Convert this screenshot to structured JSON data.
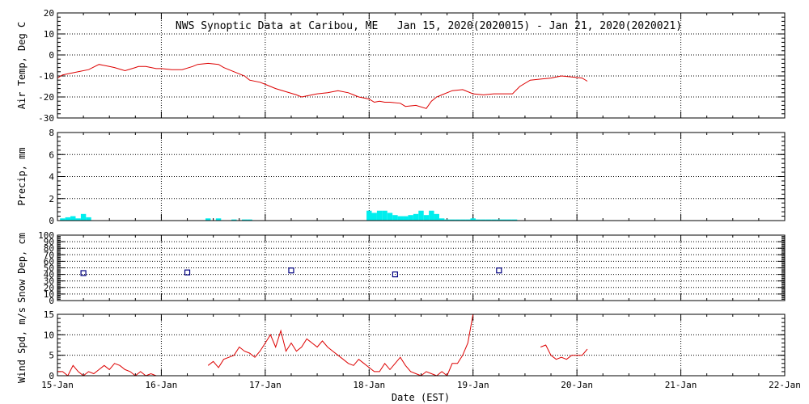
{
  "chart_data": {
    "type": "multi-panel",
    "title": "NWS Synoptic Data at Caribou, ME   Jan 15, 2020(2020015) - Jan 21, 2020(2020021)",
    "xlabel": "Date (EST)",
    "x_unit": "days since 15-Jan 00:00 EST",
    "xlim": [
      0,
      7
    ],
    "x_ticks": [
      0,
      1,
      2,
      3,
      4,
      5,
      6,
      7
    ],
    "x_tick_labels": [
      "15-Jan",
      "16-Jan",
      "17-Jan",
      "18-Jan",
      "19-Jan",
      "20-Jan",
      "21-Jan",
      "22-Jan"
    ],
    "colors": {
      "line": "#dd0000",
      "bar": "#00eeee",
      "marker": "#000080",
      "grid": "#000000"
    },
    "panels": [
      {
        "type": "line",
        "ylabel": "Air Temp, Deg C",
        "ylim": [
          -30,
          20
        ],
        "yticks": [
          -30,
          -20,
          -10,
          0,
          10,
          20
        ],
        "series": [
          {
            "name": "Air Temp",
            "x": [
              0.0,
              0.05,
              0.1,
              0.2,
              0.3,
              0.4,
              0.5,
              0.55,
              0.65,
              0.75,
              0.78,
              0.85,
              0.95,
              1.0,
              1.1,
              1.2,
              1.3,
              1.35,
              1.45,
              1.55,
              1.6,
              1.7,
              1.8,
              1.85,
              1.95,
              2.0,
              2.1,
              2.2,
              2.3,
              2.35,
              2.45,
              2.5,
              2.6,
              2.7,
              2.8,
              2.85,
              2.9,
              2.95,
              3.0,
              3.05,
              3.1,
              3.15,
              3.2,
              3.3,
              3.35,
              3.45,
              3.55,
              3.6,
              3.65,
              3.7,
              3.8,
              3.9,
              4.0,
              4.1,
              4.2,
              4.3,
              4.38,
              4.45,
              4.55,
              4.65,
              4.75,
              4.85,
              4.95,
              5.05,
              5.1
            ],
            "y": [
              -11,
              -9.5,
              -9,
              -8,
              -7,
              -4.5,
              -5.5,
              -6,
              -7.5,
              -6,
              -5.5,
              -5.5,
              -6.5,
              -6.5,
              -7,
              -7,
              -5.5,
              -4.5,
              -4,
              -4.5,
              -6,
              -8,
              -10,
              -12,
              -13,
              -14,
              -16,
              -17.5,
              -19,
              -20,
              -19,
              -18.5,
              -18,
              -17,
              -18,
              -19,
              -20,
              -20.5,
              -21,
              -22.5,
              -22,
              -22.5,
              -22.5,
              -23,
              -24.5,
              -24,
              -25.5,
              -22,
              -20,
              -19,
              -17,
              -16.5,
              -18.5,
              -19,
              -18.5,
              -18.5,
              -18.5,
              -15,
              -12,
              -11.5,
              -11,
              -10,
              -10.5,
              -11,
              -12.5
            ]
          }
        ]
      },
      {
        "type": "bar",
        "ylabel": "Precip, mm",
        "ylim": [
          0,
          8
        ],
        "yticks": [
          0,
          2,
          4,
          6,
          8
        ],
        "bar_width": 0.05,
        "series": [
          {
            "name": "Precip",
            "x": [
              0.05,
              0.1,
              0.15,
              0.2,
              0.25,
              0.3,
              1.45,
              1.55,
              1.7,
              1.8,
              1.85,
              3.0,
              3.05,
              3.1,
              3.15,
              3.2,
              3.25,
              3.3,
              3.35,
              3.4,
              3.45,
              3.5,
              3.55,
              3.6,
              3.65,
              3.7,
              3.75,
              3.8,
              3.85,
              3.9,
              3.95,
              4.0,
              4.05,
              4.1,
              4.15,
              4.2,
              4.25,
              4.3,
              4.35,
              4.4
            ],
            "y": [
              0.2,
              0.3,
              0.4,
              0.2,
              0.6,
              0.3,
              0.2,
              0.2,
              0.1,
              0.1,
              0.1,
              0.9,
              0.7,
              0.9,
              0.9,
              0.7,
              0.5,
              0.4,
              0.4,
              0.5,
              0.6,
              0.9,
              0.5,
              0.9,
              0.6,
              0.2,
              0.1,
              0.1,
              0.1,
              0.1,
              0.1,
              0.2,
              0.1,
              0.1,
              0.1,
              0.1,
              0.1,
              0.1,
              0.1,
              0.1
            ]
          }
        ]
      },
      {
        "type": "scatter",
        "ylabel": "Snow Dep, cm",
        "ylim": [
          0,
          100
        ],
        "yticks": [
          0,
          10,
          20,
          30,
          40,
          50,
          60,
          70,
          80,
          90,
          100
        ],
        "series": [
          {
            "name": "Snow Depth",
            "x": [
              0.25,
              1.25,
              2.25,
              3.25,
              4.25
            ],
            "y": [
              42,
              43,
              46,
              40,
              46
            ]
          }
        ]
      },
      {
        "type": "line",
        "ylabel": "Wind Spd, m/s",
        "ylim": [
          0,
          15
        ],
        "yticks": [
          0,
          5,
          10,
          15
        ],
        "series": [
          {
            "name": "Wind Spd",
            "x": [
              0.0,
              0.05,
              0.1,
              0.15,
              0.2,
              0.25,
              0.3,
              0.35,
              0.4,
              0.45,
              0.5,
              0.55,
              0.6,
              0.65,
              0.7,
              0.75,
              0.8,
              0.85,
              0.9,
              0.95,
              1.0
            ],
            "y": [
              1,
              1,
              0,
              2.5,
              1,
              0,
              1,
              0.5,
              1.5,
              2.5,
              1.5,
              3,
              2.5,
              1.5,
              1,
              0,
              1,
              0,
              0.5,
              0,
              0
            ]
          },
          {
            "name": "Wind Spd",
            "x": [
              1.45,
              1.5,
              1.55,
              1.6,
              1.65,
              1.7,
              1.75,
              1.8,
              1.85,
              1.9,
              1.95,
              2.0,
              2.05,
              2.1,
              2.15,
              2.2,
              2.25,
              2.3,
              2.35,
              2.4,
              2.45,
              2.5,
              2.55,
              2.6,
              2.65,
              2.7,
              2.75,
              2.8,
              2.85,
              2.9,
              2.95,
              3.0,
              3.05,
              3.1,
              3.15,
              3.2,
              3.25,
              3.3,
              3.35,
              3.4,
              3.45,
              3.5,
              3.55,
              3.6,
              3.65,
              3.7,
              3.75,
              3.8,
              3.85,
              3.9,
              3.95,
              4.0,
              4.05,
              4.1,
              4.15
            ],
            "y": [
              2.5,
              3.5,
              2,
              4,
              4.5,
              5,
              7,
              6,
              5.5,
              4.5,
              6,
              8,
              10,
              7,
              11,
              6,
              8,
              6,
              7,
              9,
              8,
              7,
              8.5,
              7,
              6,
              5,
              4,
              3,
              2.5,
              4,
              3,
              2,
              1,
              1,
              3,
              1.5,
              3,
              4.5,
              2.5,
              1,
              0.5,
              0,
              1,
              0.5,
              0,
              1,
              0,
              3,
              3,
              5,
              8,
              15,
              15,
              15,
              15
            ]
          },
          {
            "name": "Wind Spd",
            "x": [
              4.65,
              4.7,
              4.75,
              4.8,
              4.85,
              4.9,
              4.95,
              5.0,
              5.05,
              5.1
            ],
            "y": [
              7,
              7.5,
              5,
              4,
              4.5,
              4,
              5,
              5,
              5,
              6.5
            ]
          }
        ]
      }
    ]
  }
}
